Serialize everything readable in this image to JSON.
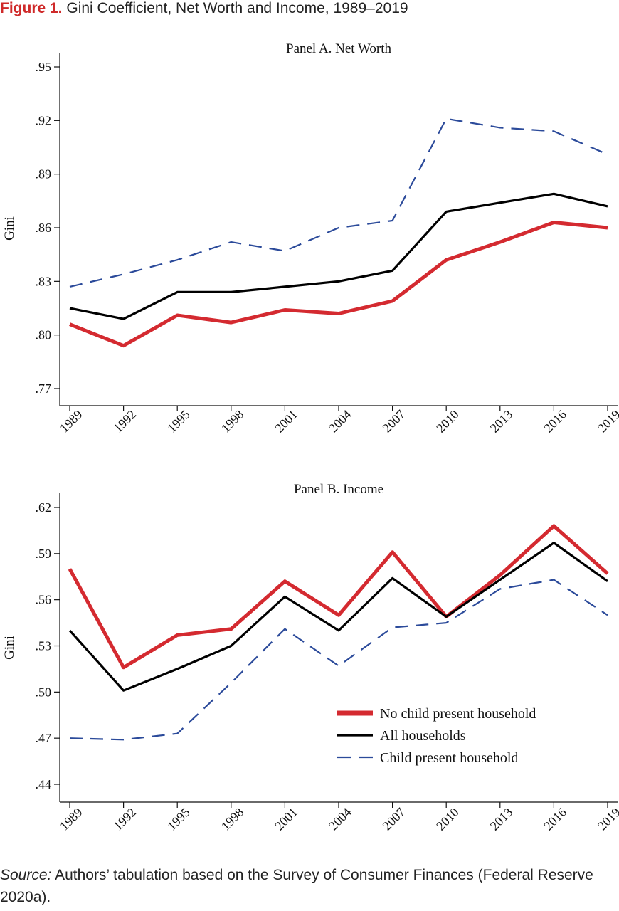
{
  "figure": {
    "label": "Figure 1.",
    "title": "Gini Coefficient, Net Worth and Income, 1989–2019"
  },
  "source": {
    "label": "Source:",
    "text": "Authors’ tabulation based on the Survey of Consumer Finances (Federal Reserve 2020a)."
  },
  "colors": {
    "no_child": "#d42a30",
    "all": "#000000",
    "child": "#2b4a9a"
  },
  "legend": {
    "placement": "lower-right",
    "entries": [
      "No child present household",
      "All households",
      "Child present household"
    ]
  },
  "chart_data": [
    {
      "type": "line",
      "title": "Panel A. Net Worth",
      "ylabel": "Gini",
      "xlabel": "",
      "x": [
        "1989",
        "1992",
        "1995",
        "1998",
        "2001",
        "2004",
        "2007",
        "2010",
        "2013",
        "2016",
        "2019"
      ],
      "ylim": [
        0.765,
        0.955
      ],
      "yticks": [
        0.77,
        0.8,
        0.83,
        0.86,
        0.89,
        0.92,
        0.95
      ],
      "ytick_labels": [
        ".77",
        ".80",
        ".83",
        ".86",
        ".89",
        ".92",
        ".95"
      ],
      "grid": false,
      "series": [
        {
          "name": "No child present household",
          "color_key": "no_child",
          "style": "thick",
          "values": [
            0.806,
            0.794,
            0.811,
            0.807,
            0.814,
            0.812,
            0.819,
            0.842,
            0.852,
            0.863,
            0.86
          ]
        },
        {
          "name": "All households",
          "color_key": "all",
          "style": "solid",
          "values": [
            0.815,
            0.809,
            0.824,
            0.824,
            0.827,
            0.83,
            0.836,
            0.869,
            0.874,
            0.879,
            0.872
          ]
        },
        {
          "name": "Child present household",
          "color_key": "child",
          "style": "dashed",
          "values": [
            0.827,
            0.834,
            0.842,
            0.852,
            0.847,
            0.86,
            0.864,
            0.921,
            0.916,
            0.914,
            0.901
          ]
        }
      ]
    },
    {
      "type": "line",
      "title": "Panel B. Income",
      "ylabel": "Gini",
      "xlabel": "",
      "x": [
        "1989",
        "1992",
        "1995",
        "1998",
        "2001",
        "2004",
        "2007",
        "2010",
        "2013",
        "2016",
        "2019"
      ],
      "ylim": [
        0.432,
        0.628
      ],
      "yticks": [
        0.44,
        0.47,
        0.5,
        0.53,
        0.56,
        0.59,
        0.62
      ],
      "ytick_labels": [
        ".44",
        ".47",
        ".50",
        ".53",
        ".56",
        ".59",
        ".62"
      ],
      "grid": false,
      "series": [
        {
          "name": "No child present household",
          "color_key": "no_child",
          "style": "thick",
          "values": [
            0.58,
            0.516,
            0.537,
            0.541,
            0.572,
            0.55,
            0.591,
            0.549,
            0.576,
            0.608,
            0.577
          ]
        },
        {
          "name": "All households",
          "color_key": "all",
          "style": "solid",
          "values": [
            0.54,
            0.501,
            0.515,
            0.53,
            0.562,
            0.54,
            0.574,
            0.549,
            0.573,
            0.597,
            0.572
          ]
        },
        {
          "name": "Child present household",
          "color_key": "child",
          "style": "dashed",
          "values": [
            0.47,
            0.469,
            0.473,
            0.506,
            0.541,
            0.517,
            0.542,
            0.545,
            0.567,
            0.573,
            0.55
          ]
        }
      ]
    }
  ]
}
